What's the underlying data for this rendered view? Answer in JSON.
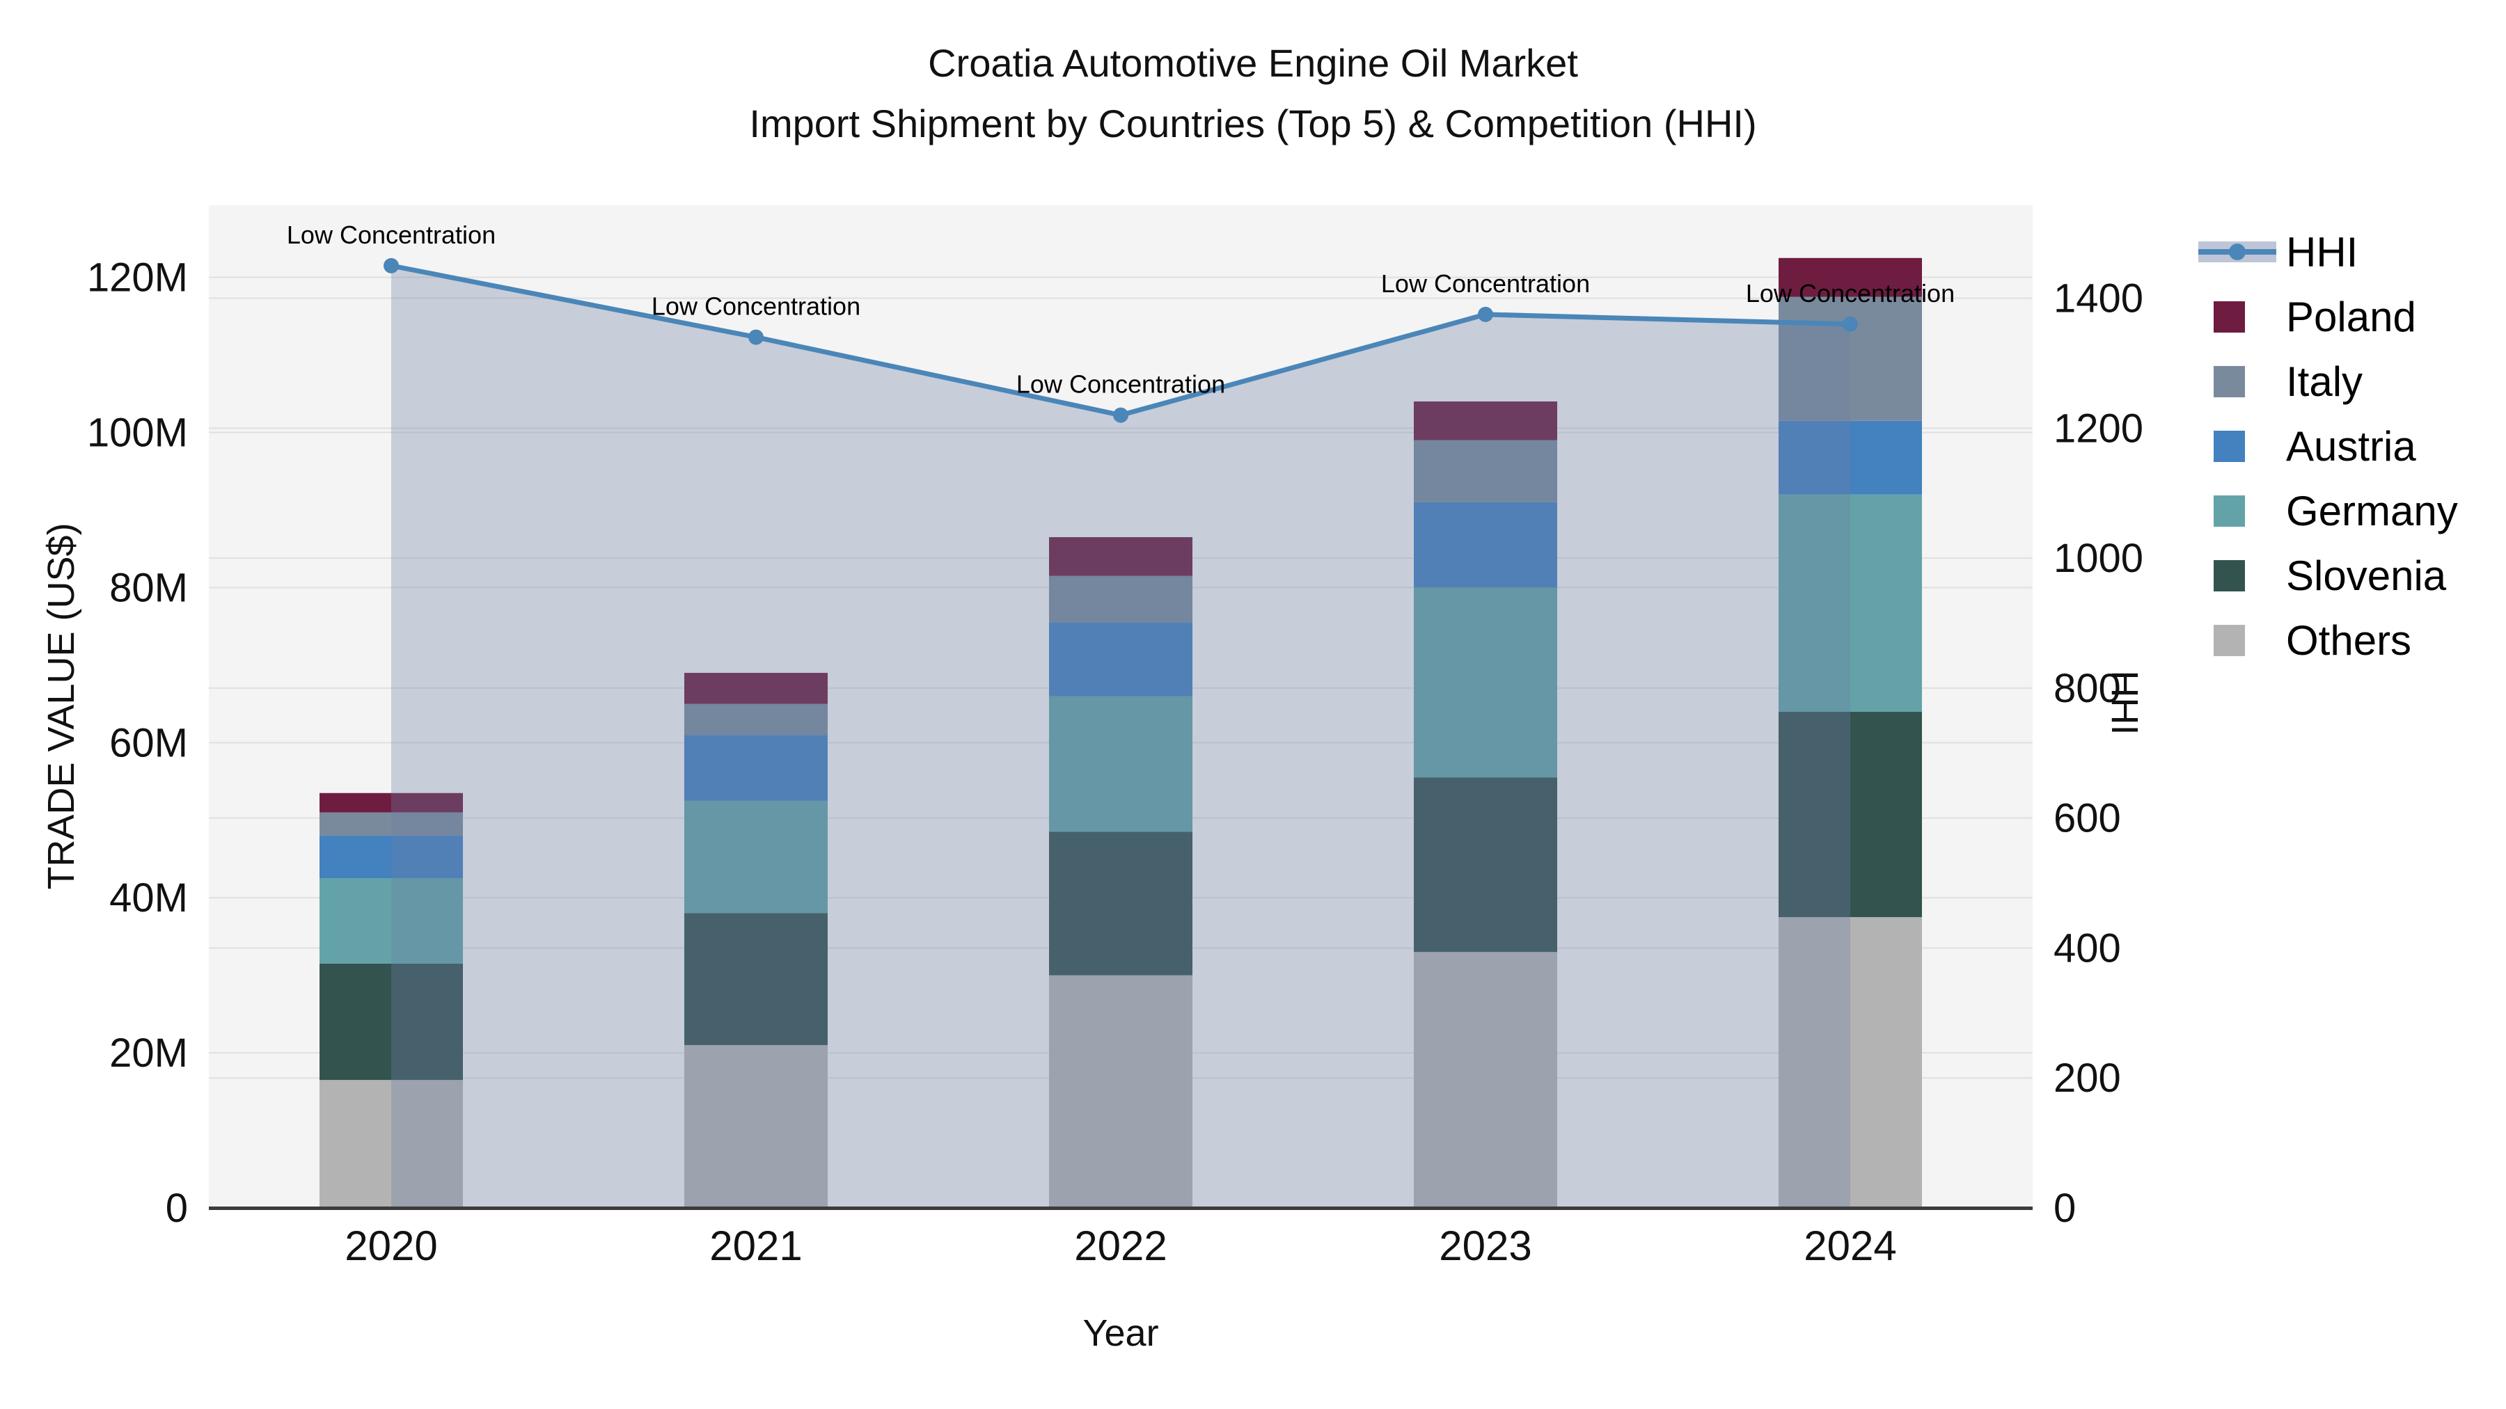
{
  "title": {
    "line1": "Croatia Automotive Engine Oil Market",
    "line2": "Import Shipment by Countries (Top 5) & Competition (HHI)"
  },
  "legend": {
    "items": [
      {
        "label": "HHI",
        "type": "line",
        "color": "#4A86B8"
      },
      {
        "label": "Poland",
        "type": "swatch",
        "color": "#6E1D41"
      },
      {
        "label": "Italy",
        "type": "swatch",
        "color": "#7A8A9D"
      },
      {
        "label": "Austria",
        "type": "swatch",
        "color": "#4381BF"
      },
      {
        "label": "Germany",
        "type": "swatch",
        "color": "#63A3A8"
      },
      {
        "label": "Slovenia",
        "type": "swatch",
        "color": "#33534F"
      },
      {
        "label": "Others",
        "type": "swatch",
        "color": "#B3B3B3"
      }
    ]
  },
  "chart_data": {
    "type": "bar",
    "subtype": "stacked-bar-with-line",
    "title": "Croatia Automotive Engine Oil Market — Import Shipment by Countries (Top 5) & Competition (HHI)",
    "categories": [
      "2020",
      "2021",
      "2022",
      "2023",
      "2024"
    ],
    "bar_value_unit": "million US$",
    "series": [
      {
        "name": "Others",
        "values": [
          16.5,
          21.0,
          30.0,
          33.0,
          37.5
        ],
        "color": "#B3B3B3"
      },
      {
        "name": "Slovenia",
        "values": [
          15.0,
          17.0,
          18.5,
          22.5,
          26.5
        ],
        "color": "#33534F"
      },
      {
        "name": "Germany",
        "values": [
          11.0,
          14.5,
          17.5,
          24.5,
          28.0
        ],
        "color": "#63A3A8"
      },
      {
        "name": "Austria",
        "values": [
          5.5,
          8.5,
          9.5,
          11.0,
          9.5
        ],
        "color": "#4381BF"
      },
      {
        "name": "Italy",
        "values": [
          3.0,
          4.0,
          6.0,
          8.0,
          16.0
        ],
        "color": "#7A8A9D"
      },
      {
        "name": "Poland",
        "values": [
          2.5,
          4.0,
          5.0,
          5.0,
          5.0
        ],
        "color": "#6E1D41"
      }
    ],
    "line_series": {
      "name": "HHI",
      "axis": "right",
      "values": [
        1450,
        1340,
        1220,
        1375,
        1360
      ],
      "color": "#4A86B8",
      "area_fill": "rgba(110,127,164,0.33)"
    },
    "annotations": [
      "Low Concentration",
      "Low Concentration",
      "Low Concentration",
      "Low Concentration",
      "Low Concentration"
    ],
    "xlabel": "Year",
    "left_axis": {
      "label": "TRADE VALUE (US$)",
      "tick_labels": [
        "0",
        "20M",
        "40M",
        "60M",
        "80M",
        "100M",
        "120M"
      ],
      "tick_values": [
        0,
        20,
        40,
        60,
        80,
        100,
        120
      ],
      "range": [
        0,
        129.3
      ]
    },
    "right_axis": {
      "label": "HHI",
      "tick_labels": [
        "0",
        "200",
        "400",
        "600",
        "800",
        "1000",
        "1200",
        "1400"
      ],
      "tick_values": [
        0,
        200,
        400,
        600,
        800,
        1000,
        1200,
        1400
      ],
      "range": [
        0,
        1543
      ]
    },
    "grid": true,
    "legend_position": "right",
    "plot_background": "#f4f4f4",
    "grid_color": "#e0e0e0",
    "axisline_color": "#3b3b3b"
  }
}
